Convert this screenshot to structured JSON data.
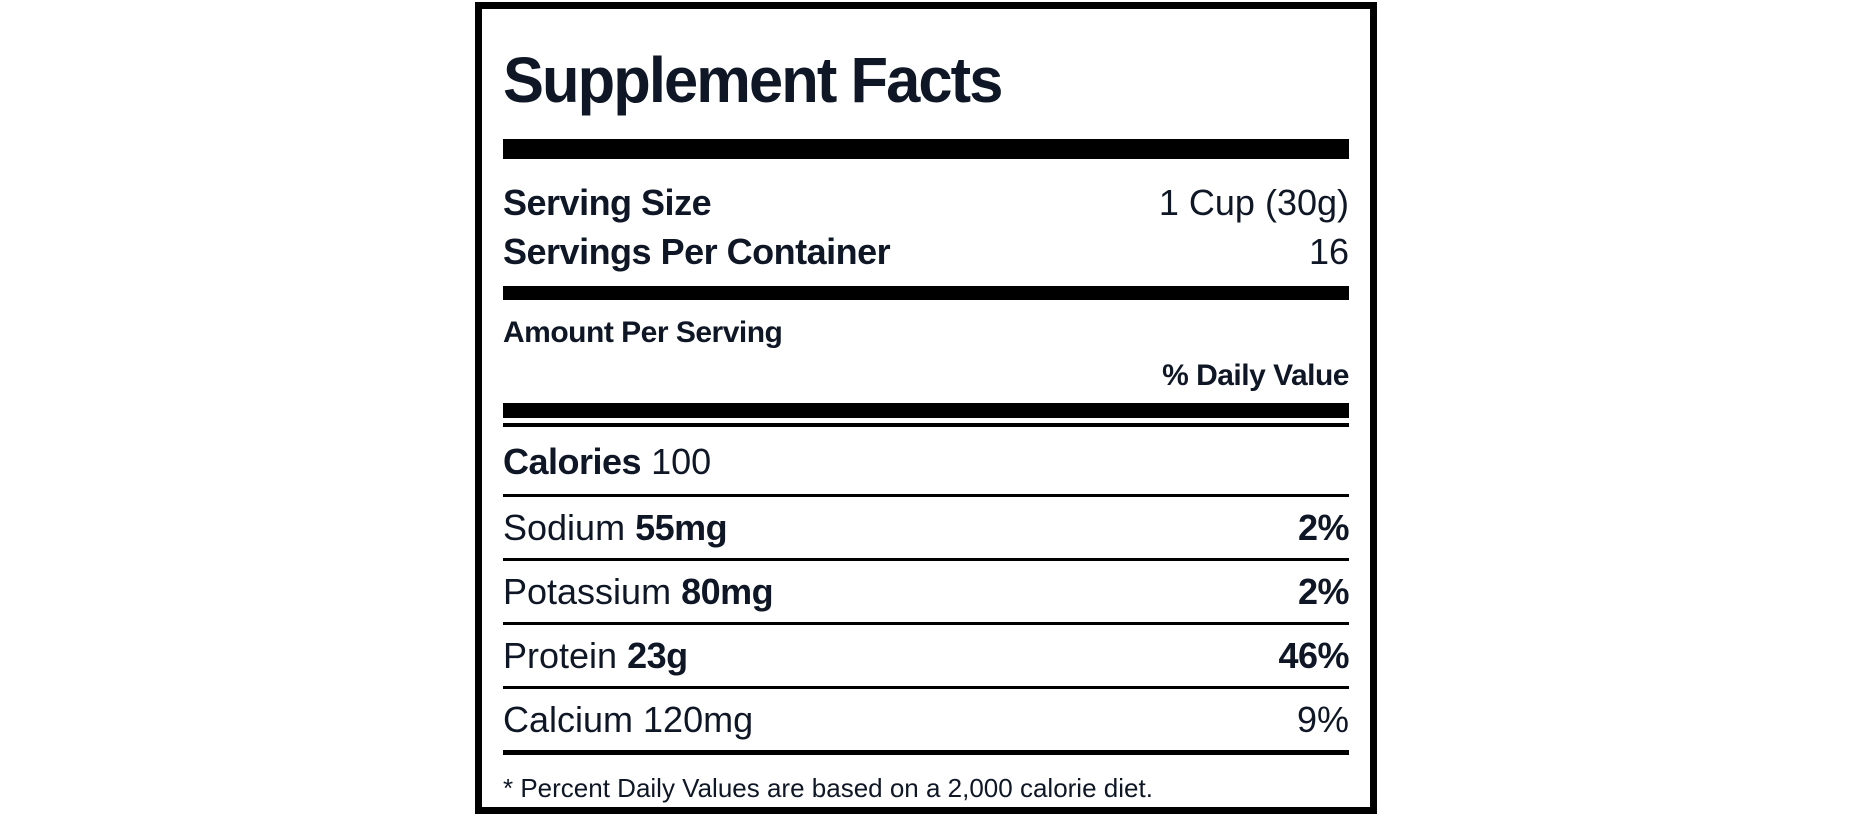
{
  "label": {
    "title": "Supplement Facts",
    "serving_info": {
      "serving_size_label": "Serving Size",
      "serving_size_value": "1 Cup (30g)",
      "servings_per_container_label": "Servings Per Container",
      "servings_per_container_value": "16"
    },
    "amount_per_serving_label": "Amount Per Serving",
    "daily_value_header": "% Daily Value",
    "calories": {
      "name": "Calories",
      "value": "100"
    },
    "nutrients": [
      {
        "name": "Sodium",
        "amount": "55mg",
        "daily_value": "2%"
      },
      {
        "name": "Potassium",
        "amount": "80mg",
        "daily_value": "2%"
      },
      {
        "name": "Protein",
        "amount": "23g",
        "daily_value": "46%"
      },
      {
        "name": "Calcium",
        "amount": "120mg",
        "daily_value": "9%"
      }
    ],
    "footnote": "* Percent Daily Values are based on a 2,000 calorie diet.",
    "colors": {
      "text": "#0f1726",
      "rule": "#000000",
      "background": "#ffffff"
    }
  }
}
